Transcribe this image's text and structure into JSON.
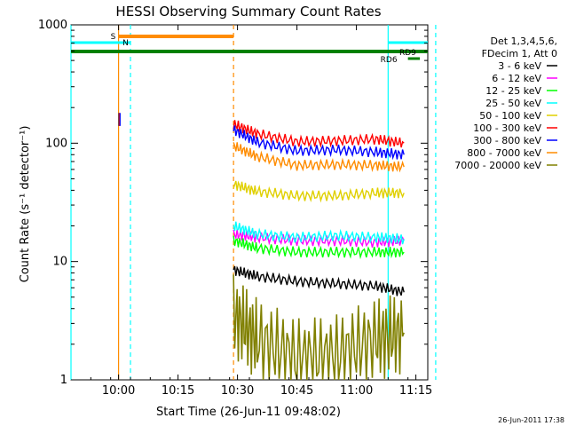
{
  "chart_data": {
    "type": "line",
    "title": "HESSI Observing Summary Count Rates",
    "xlabel": "Start Time (26-Jun-11 09:48:02)",
    "ylabel": "Count Rate (s⁻¹ detector⁻¹)",
    "yscale": "log",
    "ylim": [
      1,
      1000
    ],
    "xlim_minutes_after_start": [
      0,
      90
    ],
    "x_ticks": [
      "10:00",
      "10:15",
      "10:30",
      "10:45",
      "11:00",
      "11:15"
    ],
    "y_ticks": [
      "1",
      "10",
      "100",
      "1000"
    ],
    "timestamp": "26-Jun-2011 17:38",
    "legend": {
      "header": [
        "Det 1,3,4,5,6,",
        "FDecim 1, Att 0"
      ],
      "placement": "right"
    },
    "series": [
      {
        "name": "3 - 6 keV",
        "color": "#000000",
        "x": [
          "10:29",
          "10:35",
          "10:45",
          "10:55",
          "11:05",
          "11:12"
        ],
        "values": [
          8.5,
          7.5,
          6.8,
          6.5,
          6.2,
          5.5
        ]
      },
      {
        "name": "6 - 12 keV",
        "color": "#ff00ff",
        "x": [
          "10:29",
          "10:35",
          "10:45",
          "10:55",
          "11:05",
          "11:12"
        ],
        "values": [
          17,
          16,
          15,
          15,
          14.5,
          15
        ]
      },
      {
        "name": "12 - 25 keV",
        "color": "#00ff00",
        "x": [
          "10:29",
          "10:35",
          "10:45",
          "10:55",
          "11:05",
          "11:12"
        ],
        "values": [
          15,
          13,
          12,
          12,
          12,
          12
        ]
      },
      {
        "name": "25 - 50 keV",
        "color": "#00ffff",
        "x": [
          "10:29",
          "10:35",
          "10:45",
          "10:55",
          "11:05",
          "11:12"
        ],
        "values": [
          20,
          17,
          16,
          16.5,
          16,
          15.5
        ]
      },
      {
        "name": "50 - 100 keV",
        "color": "#e0d000",
        "x": [
          "10:29",
          "10:35",
          "10:45",
          "10:55",
          "11:05",
          "11:12"
        ],
        "values": [
          45,
          39,
          36,
          36,
          38,
          38
        ]
      },
      {
        "name": "100 - 300 keV",
        "color": "#ff0000",
        "x": [
          "10:29",
          "10:35",
          "10:45",
          "10:55",
          "11:05",
          "11:12"
        ],
        "values": [
          145,
          120,
          103,
          105,
          108,
          100
        ]
      },
      {
        "name": "300 - 800 keV",
        "color": "#0000ff",
        "x": [
          "10:29",
          "10:35",
          "10:45",
          "10:55",
          "11:05",
          "11:12"
        ],
        "values": [
          130,
          102,
          86,
          88,
          84,
          80
        ]
      },
      {
        "name": "800 - 7000 keV",
        "color": "#ff8c00",
        "x": [
          "10:29",
          "10:35",
          "10:45",
          "10:55",
          "11:05",
          "11:12"
        ],
        "values": [
          95,
          77,
          65,
          66,
          65,
          63
        ]
      },
      {
        "name": "7000 - 20000 keV",
        "color": "#808000",
        "x": [
          "10:29",
          "10:35",
          "10:45",
          "10:55",
          "11:05",
          "11:12"
        ],
        "values": [
          3.5,
          2.2,
          1.5,
          1.6,
          2.2,
          2.5
        ]
      }
    ],
    "flag_bars": [
      {
        "label": "S",
        "color": "#ff8c00",
        "start": "10:00",
        "end": "10:29"
      },
      {
        "label": "N",
        "color": "#00ffff",
        "start": "09:48",
        "end": "10:03"
      },
      {
        "label": "",
        "color": "#008000",
        "start": "09:48",
        "end": "11:18"
      },
      {
        "label": "RD9",
        "color": "#00ffff",
        "start": "11:08",
        "end": "11:18"
      },
      {
        "label": "RD6",
        "color": "#008000",
        "start": "11:13",
        "end": "11:16"
      }
    ],
    "vertical_markers": [
      {
        "time": "09:48",
        "color": "#00ffff",
        "style": "solid"
      },
      {
        "time": "10:00",
        "color": "#ff8c00",
        "style": "solid"
      },
      {
        "time": "10:03",
        "color": "#00ffff",
        "style": "dashed"
      },
      {
        "time": "10:29",
        "color": "#ff8c00",
        "style": "dashed"
      },
      {
        "time": "11:08",
        "color": "#00ffff",
        "style": "solid"
      },
      {
        "time": "11:20",
        "color": "#00ffff",
        "style": "dashed"
      }
    ]
  }
}
